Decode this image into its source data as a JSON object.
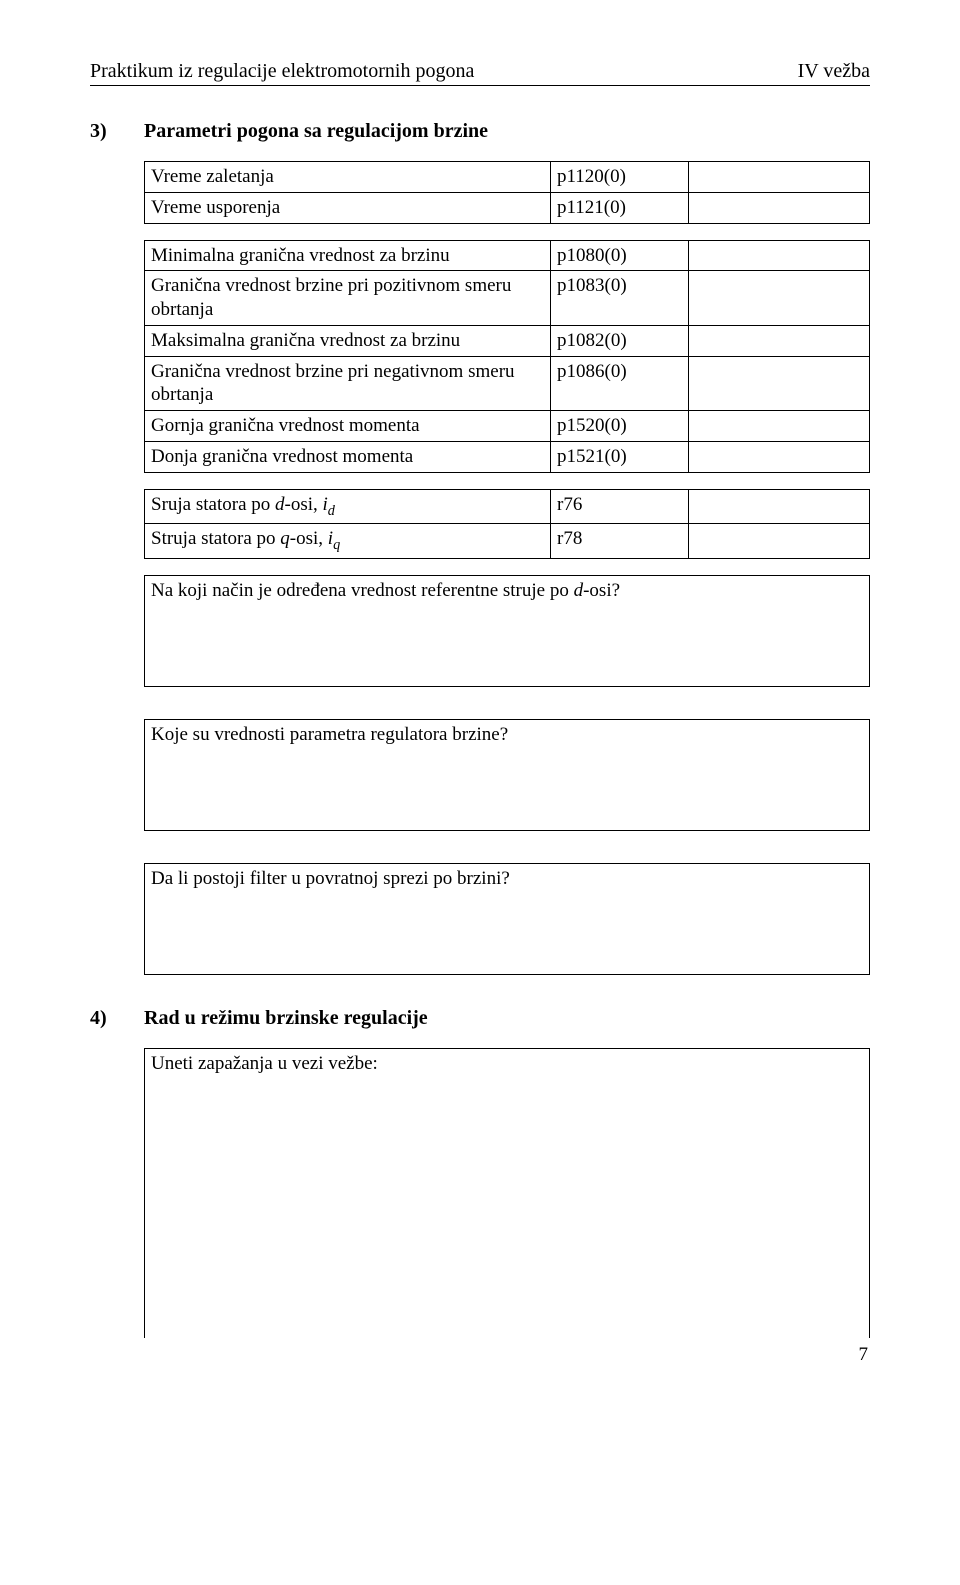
{
  "header": {
    "left": "Praktikum iz regulacije elektromotornih pogona",
    "right": "IV vežba"
  },
  "section3": {
    "num": "3)",
    "title": "Parametri pogona sa regulacijom brzine",
    "tableA": {
      "r1": {
        "c1": "Vreme zaletanja",
        "c2": "p1120(0)"
      },
      "r2": {
        "c1": "Vreme usporenja",
        "c2": "p1121(0)"
      }
    },
    "tableB": {
      "r1": {
        "c1": "Minimalna granična vrednost za brzinu",
        "c2": "p1080(0)"
      },
      "r2": {
        "c1": "Granična vrednost brzine pri pozitivnom smeru obrtanja",
        "c2": "p1083(0)"
      },
      "r3": {
        "c1": "Maksimalna granična vrednost za brzinu",
        "c2": "p1082(0)"
      },
      "r4": {
        "c1": "Granična vrednost brzine pri negativnom smeru obrtanja",
        "c2": "p1086(0)"
      },
      "r5": {
        "c1": "Gornja granična vrednost momenta",
        "c2": "p1520(0)"
      },
      "r6": {
        "c1": "Donja granična vrednost momenta",
        "c2": "p1521(0)"
      }
    },
    "tableC": {
      "r1": {
        "c2": "r76"
      },
      "r2": {
        "c2": "r78"
      }
    },
    "q1": "Na koji način je određena vrednost referentne struje po d-osi?",
    "q2": "Koje su vrednosti parametra regulatora brzine?",
    "q3": "Da li postoji filter u povratnoj sprezi po brzini?"
  },
  "section4": {
    "num": "4)",
    "title": "Rad u režimu brzinske regulacije",
    "obs": "Uneti zapažanja u vezi vežbe:"
  },
  "pageNumber": "7"
}
